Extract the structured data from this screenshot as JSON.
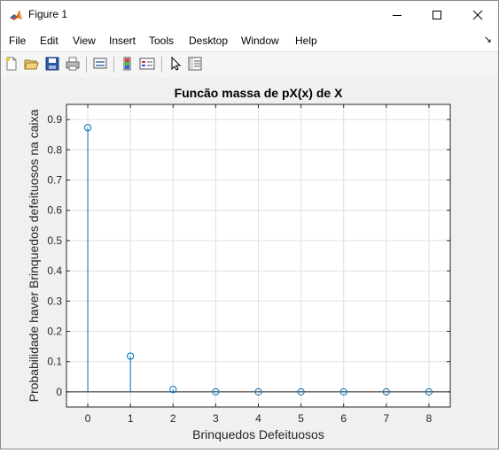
{
  "window": {
    "title": "Figure 1",
    "icon": "matlab-logo-icon"
  },
  "menu": {
    "items": [
      "File",
      "Edit",
      "View",
      "Insert",
      "Tools",
      "Desktop",
      "Window",
      "Help"
    ],
    "dock_arrow": "↘"
  },
  "toolbar": {
    "buttons": [
      "new-figure-icon",
      "open-file-icon",
      "save-icon",
      "print-icon",
      "link-plot-icon",
      "insert-colorbar-icon",
      "insert-legend-icon",
      "edit-plot-pointer-icon",
      "property-inspector-icon"
    ]
  },
  "chart_data": {
    "type": "stem",
    "title": "Funcão massa de pX(x) de X",
    "xlabel": "Brinquedos Defeituosos",
    "ylabel": "Probabilidade haver Brinquedos defeituosos na caixa",
    "x": [
      0,
      1,
      2,
      3,
      4,
      5,
      6,
      7,
      8
    ],
    "y": [
      0.873,
      0.118,
      0.008,
      0.0003,
      0.0,
      0.0,
      0.0,
      0.0,
      0.0
    ],
    "xlim": [
      -0.5,
      8.5
    ],
    "ylim": [
      -0.05,
      0.95
    ],
    "xticks": [
      "0",
      "1",
      "2",
      "3",
      "4",
      "5",
      "6",
      "7",
      "8"
    ],
    "yticks": [
      "0",
      "0.1",
      "0.2",
      "0.3",
      "0.4",
      "0.5",
      "0.6",
      "0.7",
      "0.8",
      "0.9"
    ],
    "grid": true,
    "color": "#0072bd"
  }
}
